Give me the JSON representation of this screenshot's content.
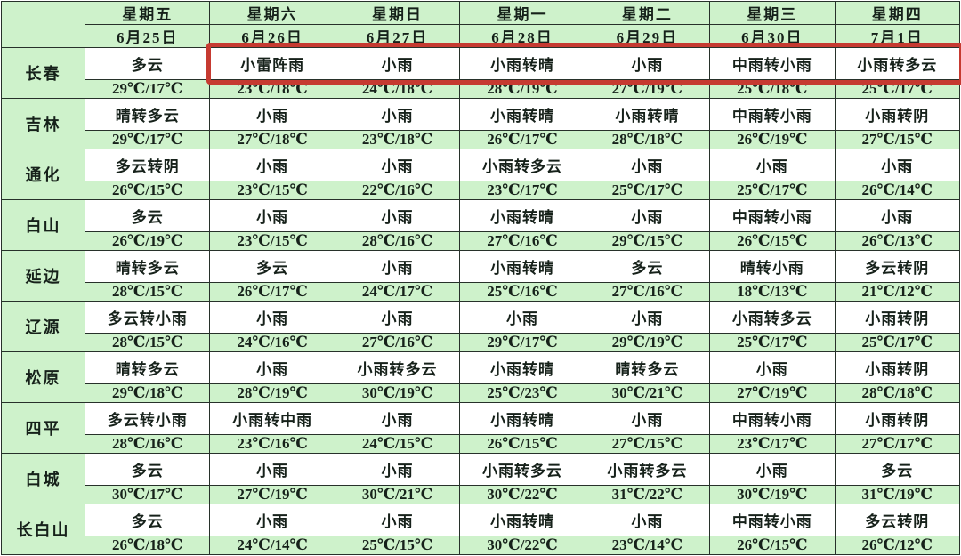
{
  "chart_data": {
    "type": "table",
    "title": "",
    "corner_label": "",
    "columns": [
      {
        "weekday": "星期五",
        "date": "6月25日"
      },
      {
        "weekday": "星期六",
        "date": "6月26日"
      },
      {
        "weekday": "星期日",
        "date": "6月27日"
      },
      {
        "weekday": "星期一",
        "date": "6月28日"
      },
      {
        "weekday": "星期二",
        "date": "6月29日"
      },
      {
        "weekday": "星期三",
        "date": "6月30日"
      },
      {
        "weekday": "星期四",
        "date": "7月1日"
      }
    ],
    "rows": [
      {
        "city": "长春",
        "cells": [
          {
            "weather": "多云",
            "temp": "29℃/17℃"
          },
          {
            "weather": "小雷阵雨",
            "temp": "23℃/18℃"
          },
          {
            "weather": "小雨",
            "temp": "24℃/18℃"
          },
          {
            "weather": "小雨转晴",
            "temp": "28℃/19℃"
          },
          {
            "weather": "小雨",
            "temp": "27℃/19℃"
          },
          {
            "weather": "中雨转小雨",
            "temp": "25℃/18℃"
          },
          {
            "weather": "小雨转多云",
            "temp": "25℃/17℃"
          }
        ]
      },
      {
        "city": "吉林",
        "cells": [
          {
            "weather": "晴转多云",
            "temp": "29℃/17℃"
          },
          {
            "weather": "小雨",
            "temp": "27℃/18℃"
          },
          {
            "weather": "小雨",
            "temp": "23℃/18℃"
          },
          {
            "weather": "小雨转晴",
            "temp": "26℃/17℃"
          },
          {
            "weather": "小雨转晴",
            "temp": "28℃/18℃"
          },
          {
            "weather": "中雨转小雨",
            "temp": "26℃/19℃"
          },
          {
            "weather": "小雨转阴",
            "temp": "27℃/15℃"
          }
        ]
      },
      {
        "city": "通化",
        "cells": [
          {
            "weather": "多云转阴",
            "temp": "26℃/15℃"
          },
          {
            "weather": "小雨",
            "temp": "23℃/15℃"
          },
          {
            "weather": "小雨",
            "temp": "22℃/16℃"
          },
          {
            "weather": "小雨转多云",
            "temp": "23℃/17℃"
          },
          {
            "weather": "小雨",
            "temp": "25℃/17℃"
          },
          {
            "weather": "小雨",
            "temp": "25℃/17℃"
          },
          {
            "weather": "小雨",
            "temp": "26℃/14℃"
          }
        ]
      },
      {
        "city": "白山",
        "cells": [
          {
            "weather": "多云",
            "temp": "26℃/19℃"
          },
          {
            "weather": "小雨",
            "temp": "23℃/15℃"
          },
          {
            "weather": "小雨",
            "temp": "28℃/16℃"
          },
          {
            "weather": "小雨转晴",
            "temp": "27℃/16℃"
          },
          {
            "weather": "小雨",
            "temp": "29℃/15℃"
          },
          {
            "weather": "中雨转小雨",
            "temp": "26℃/15℃"
          },
          {
            "weather": "小雨",
            "temp": "26℃/13℃"
          }
        ]
      },
      {
        "city": "延边",
        "cells": [
          {
            "weather": "晴转多云",
            "temp": "28℃/15℃"
          },
          {
            "weather": "多云",
            "temp": "26℃/17℃"
          },
          {
            "weather": "小雨",
            "temp": "24℃/17℃"
          },
          {
            "weather": "小雨转晴",
            "temp": "25℃/16℃"
          },
          {
            "weather": "多云",
            "temp": "27℃/16℃"
          },
          {
            "weather": "晴转小雨",
            "temp": "18℃/13℃"
          },
          {
            "weather": "多云转阴",
            "temp": "21℃/12℃"
          }
        ]
      },
      {
        "city": "辽源",
        "cells": [
          {
            "weather": "多云转小雨",
            "temp": "28℃/15℃"
          },
          {
            "weather": "小雨",
            "temp": "24℃/16℃"
          },
          {
            "weather": "小雨",
            "temp": "27℃/16℃"
          },
          {
            "weather": "小雨",
            "temp": "29℃/17℃"
          },
          {
            "weather": "小雨",
            "temp": "29℃/19℃"
          },
          {
            "weather": "小雨转多云",
            "temp": "25℃/17℃"
          },
          {
            "weather": "小雨转阴",
            "temp": "25℃/17℃"
          }
        ]
      },
      {
        "city": "松原",
        "cells": [
          {
            "weather": "晴转多云",
            "temp": "29℃/18℃"
          },
          {
            "weather": "小雨",
            "temp": "28℃/19℃"
          },
          {
            "weather": "小雨转多云",
            "temp": "30℃/19℃"
          },
          {
            "weather": "小雨转晴",
            "temp": "25℃/23℃"
          },
          {
            "weather": "晴转多云",
            "temp": "30℃/21℃"
          },
          {
            "weather": "小雨",
            "temp": "27℃/19℃"
          },
          {
            "weather": "小雨转阴",
            "temp": "28℃/18℃"
          }
        ]
      },
      {
        "city": "四平",
        "cells": [
          {
            "weather": "多云转小雨",
            "temp": "28℃/16℃"
          },
          {
            "weather": "小雨转中雨",
            "temp": "23℃/16℃"
          },
          {
            "weather": "小雨",
            "temp": "24℃/15℃"
          },
          {
            "weather": "小雨转晴",
            "temp": "26℃/15℃"
          },
          {
            "weather": "小雨",
            "temp": "27℃/15℃"
          },
          {
            "weather": "中雨转小雨",
            "temp": "23℃/17℃"
          },
          {
            "weather": "小雨转阴",
            "temp": "27℃/17℃"
          }
        ]
      },
      {
        "city": "白城",
        "cells": [
          {
            "weather": "多云",
            "temp": "30℃/17℃"
          },
          {
            "weather": "小雨",
            "temp": "27℃/19℃"
          },
          {
            "weather": "小雨",
            "temp": "30℃/21℃"
          },
          {
            "weather": "小雨转多云",
            "temp": "30℃/22℃"
          },
          {
            "weather": "小雨转多云",
            "temp": "31℃/22℃"
          },
          {
            "weather": "小雨",
            "temp": "30℃/19℃"
          },
          {
            "weather": "多云",
            "temp": "31℃/19℃"
          }
        ]
      },
      {
        "city": "长白山",
        "cells": [
          {
            "weather": "多云",
            "temp": "26℃/18℃"
          },
          {
            "weather": "小雨",
            "temp": "24℃/14℃"
          },
          {
            "weather": "小雨",
            "temp": "25℃/15℃"
          },
          {
            "weather": "小雨转晴",
            "temp": "30℃/22℃"
          },
          {
            "weather": "小雨",
            "temp": "23℃/14℃"
          },
          {
            "weather": "中雨转小雨",
            "temp": "26℃/15℃"
          },
          {
            "weather": "多云转阴",
            "temp": "26℃/12℃"
          }
        ]
      }
    ],
    "highlight": {
      "city": "长春",
      "row_type": "weather",
      "from_date": "6月26日",
      "to_date": "7月1日",
      "color": "#c63a31"
    },
    "layout_hints": {
      "header_rows": 2,
      "city_column_first": true,
      "grid": "on"
    }
  },
  "colors": {
    "cell_green": "#cef2cb",
    "weather_cell_bg": "#ffffff",
    "border": "#27312a",
    "text": "#16211a",
    "highlight_red": "#c63a31"
  }
}
